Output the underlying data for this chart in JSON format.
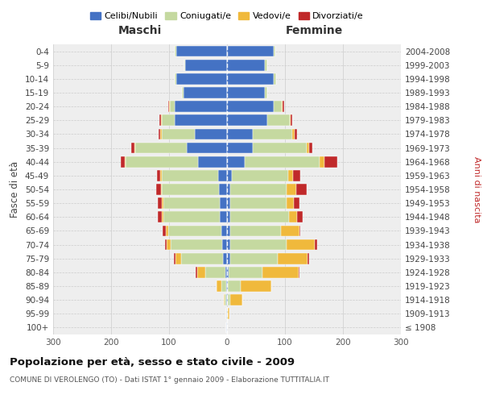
{
  "age_groups": [
    "100+",
    "95-99",
    "90-94",
    "85-89",
    "80-84",
    "75-79",
    "70-74",
    "65-69",
    "60-64",
    "55-59",
    "50-54",
    "45-49",
    "40-44",
    "35-39",
    "30-34",
    "25-29",
    "20-24",
    "15-19",
    "10-14",
    "5-9",
    "0-4"
  ],
  "birth_years": [
    "≤ 1908",
    "1909-1913",
    "1914-1918",
    "1919-1923",
    "1924-1928",
    "1929-1933",
    "1934-1938",
    "1939-1943",
    "1944-1948",
    "1949-1953",
    "1954-1958",
    "1959-1963",
    "1964-1968",
    "1969-1973",
    "1974-1978",
    "1979-1983",
    "1984-1988",
    "1989-1993",
    "1994-1998",
    "1999-2003",
    "2004-2008"
  ],
  "males_celibi": [
    1,
    1,
    1,
    2,
    3,
    7,
    9,
    10,
    12,
    12,
    14,
    15,
    50,
    70,
    55,
    90,
    90,
    75,
    88,
    72,
    88
  ],
  "males_coniugati": [
    0,
    1,
    3,
    8,
    35,
    72,
    88,
    92,
    98,
    98,
    98,
    98,
    125,
    88,
    58,
    22,
    8,
    3,
    2,
    2,
    2
  ],
  "males_vedovi": [
    0,
    0,
    2,
    8,
    14,
    10,
    7,
    4,
    2,
    2,
    2,
    2,
    2,
    2,
    2,
    2,
    2,
    0,
    0,
    0,
    0
  ],
  "males_divorziati": [
    0,
    0,
    0,
    0,
    2,
    3,
    3,
    5,
    8,
    8,
    8,
    6,
    6,
    5,
    3,
    2,
    2,
    0,
    0,
    0,
    0
  ],
  "females_nubili": [
    0,
    0,
    1,
    2,
    3,
    5,
    5,
    5,
    5,
    5,
    5,
    8,
    30,
    45,
    45,
    70,
    80,
    65,
    80,
    65,
    80
  ],
  "females_coniugate": [
    0,
    2,
    5,
    22,
    58,
    82,
    98,
    88,
    102,
    98,
    98,
    98,
    130,
    92,
    68,
    38,
    14,
    5,
    5,
    5,
    3
  ],
  "females_vedove": [
    0,
    2,
    20,
    52,
    62,
    52,
    48,
    32,
    14,
    12,
    16,
    8,
    8,
    5,
    3,
    2,
    2,
    0,
    0,
    0,
    0
  ],
  "females_divorziate": [
    0,
    0,
    0,
    0,
    2,
    3,
    5,
    2,
    10,
    10,
    18,
    12,
    22,
    5,
    5,
    3,
    3,
    0,
    0,
    0,
    0
  ],
  "color_celibi": "#4472C4",
  "color_coniugati": "#c5d9a0",
  "color_vedovi": "#f0b93c",
  "color_divorziati": "#c0292a",
  "title": "Popolazione per età, sesso e stato civile - 2009",
  "subtitle": "COMUNE DI VEROLENGO (TO) - Dati ISTAT 1° gennaio 2009 - Elaborazione TUTTITALIA.IT",
  "label_maschi": "Maschi",
  "label_femmine": "Femmine",
  "ylabel_left": "Fasce di età",
  "ylabel_right": "Anni di nascita",
  "legend_labels": [
    "Celibi/Nubili",
    "Coniugati/e",
    "Vedovi/e",
    "Divorziati/e"
  ],
  "xlim": 300
}
